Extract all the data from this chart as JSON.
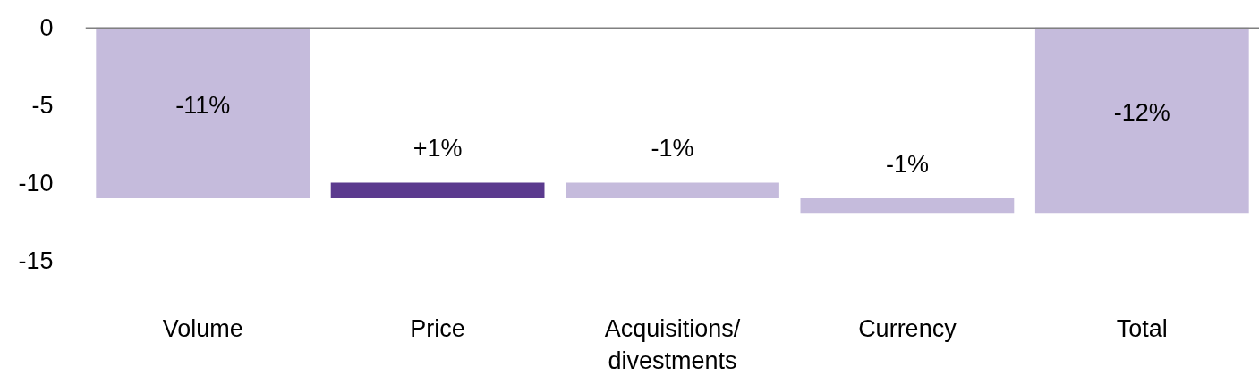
{
  "chart_data": {
    "type": "bar",
    "categories": [
      "Volume",
      "Price",
      "Acquisitions/\ndivestments",
      "Currency",
      "Total"
    ],
    "values": [
      -11,
      1,
      -1,
      -1,
      -12
    ],
    "base": [
      0,
      -11,
      -10,
      -11,
      0
    ],
    "colors": [
      "#c5bbdc",
      "#5b3a8e",
      "#c5bbdc",
      "#c5bbdc",
      "#c5bbdc"
    ],
    "value_labels": [
      "-11%",
      "+1%",
      "-1%",
      "-1%",
      "-12%"
    ],
    "ylim": [
      -15,
      0
    ],
    "yticks": [
      0,
      -5,
      -10,
      -15
    ],
    "ref_lines": [
      {
        "axis": "y",
        "value": 0,
        "color": "#808080"
      }
    ],
    "grid": false
  }
}
